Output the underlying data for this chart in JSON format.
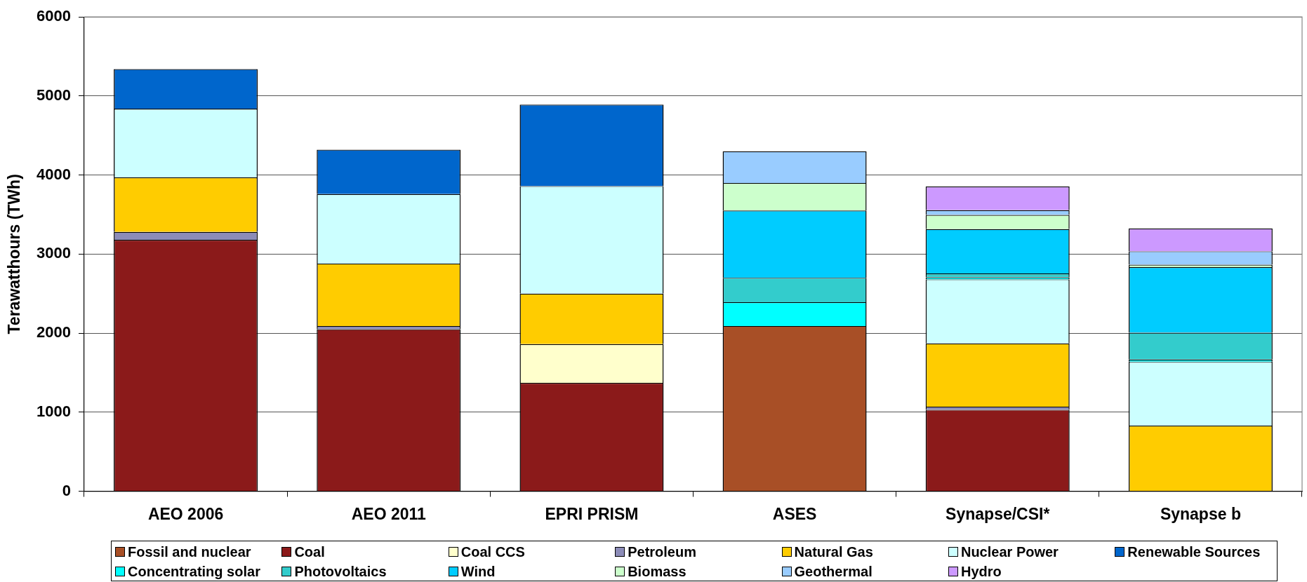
{
  "chart_data": {
    "type": "bar",
    "ylabel": "Terawatthours (TWh)",
    "categories": [
      "AEO 2006",
      "AEO 2011",
      "EPRI PRISM",
      "ASES",
      "Synapse/CSI*",
      "Synapse b"
    ],
    "stacked": true,
    "grid": "y",
    "legend": "bottom",
    "ylim": [
      0,
      6000
    ],
    "yticks": [
      0,
      1000,
      2000,
      3000,
      4000,
      5000,
      6000
    ],
    "series": [
      {
        "name": "Fossil and nuclear",
        "color": "#a84f26",
        "values": [
          null,
          null,
          null,
          2090,
          null,
          null
        ]
      },
      {
        "name": "Coal",
        "color": "#8b1a1a",
        "values": [
          3180,
          2050,
          1370,
          null,
          1030,
          null
        ]
      },
      {
        "name": "Coal CCS",
        "color": "#ffffcc",
        "values": [
          null,
          null,
          490,
          null,
          null,
          null
        ]
      },
      {
        "name": "Petroleum",
        "color": "#8c8cb8",
        "values": [
          100,
          40,
          null,
          null,
          40,
          null
        ]
      },
      {
        "name": "Natural Gas",
        "color": "#ffcc00",
        "values": [
          690,
          790,
          640,
          null,
          800,
          830
        ]
      },
      {
        "name": "Nuclear Power",
        "color": "#ccffff",
        "values": [
          870,
          880,
          1360,
          null,
          810,
          810
        ]
      },
      {
        "name": "Renewable Sources",
        "color": "#0066cc",
        "values": [
          500,
          560,
          1030,
          null,
          null,
          null
        ]
      },
      {
        "name": "Concentrating solar",
        "color": "#00ffff",
        "values": [
          null,
          null,
          null,
          300,
          25,
          25
        ]
      },
      {
        "name": "Photovoltaics",
        "color": "#33cccc",
        "values": [
          null,
          null,
          null,
          310,
          50,
          340
        ]
      },
      {
        "name": "Wind",
        "color": "#00ccff",
        "values": [
          null,
          null,
          null,
          850,
          560,
          830
        ]
      },
      {
        "name": "Biomass",
        "color": "#ccffcc",
        "values": [
          null,
          null,
          null,
          350,
          180,
          30
        ]
      },
      {
        "name": "Geothermal",
        "color": "#99ccff",
        "values": [
          null,
          null,
          null,
          400,
          60,
          170
        ]
      },
      {
        "name": "Hydro",
        "color": "#cc99ff",
        "values": [
          null,
          null,
          null,
          null,
          300,
          290
        ]
      }
    ]
  }
}
